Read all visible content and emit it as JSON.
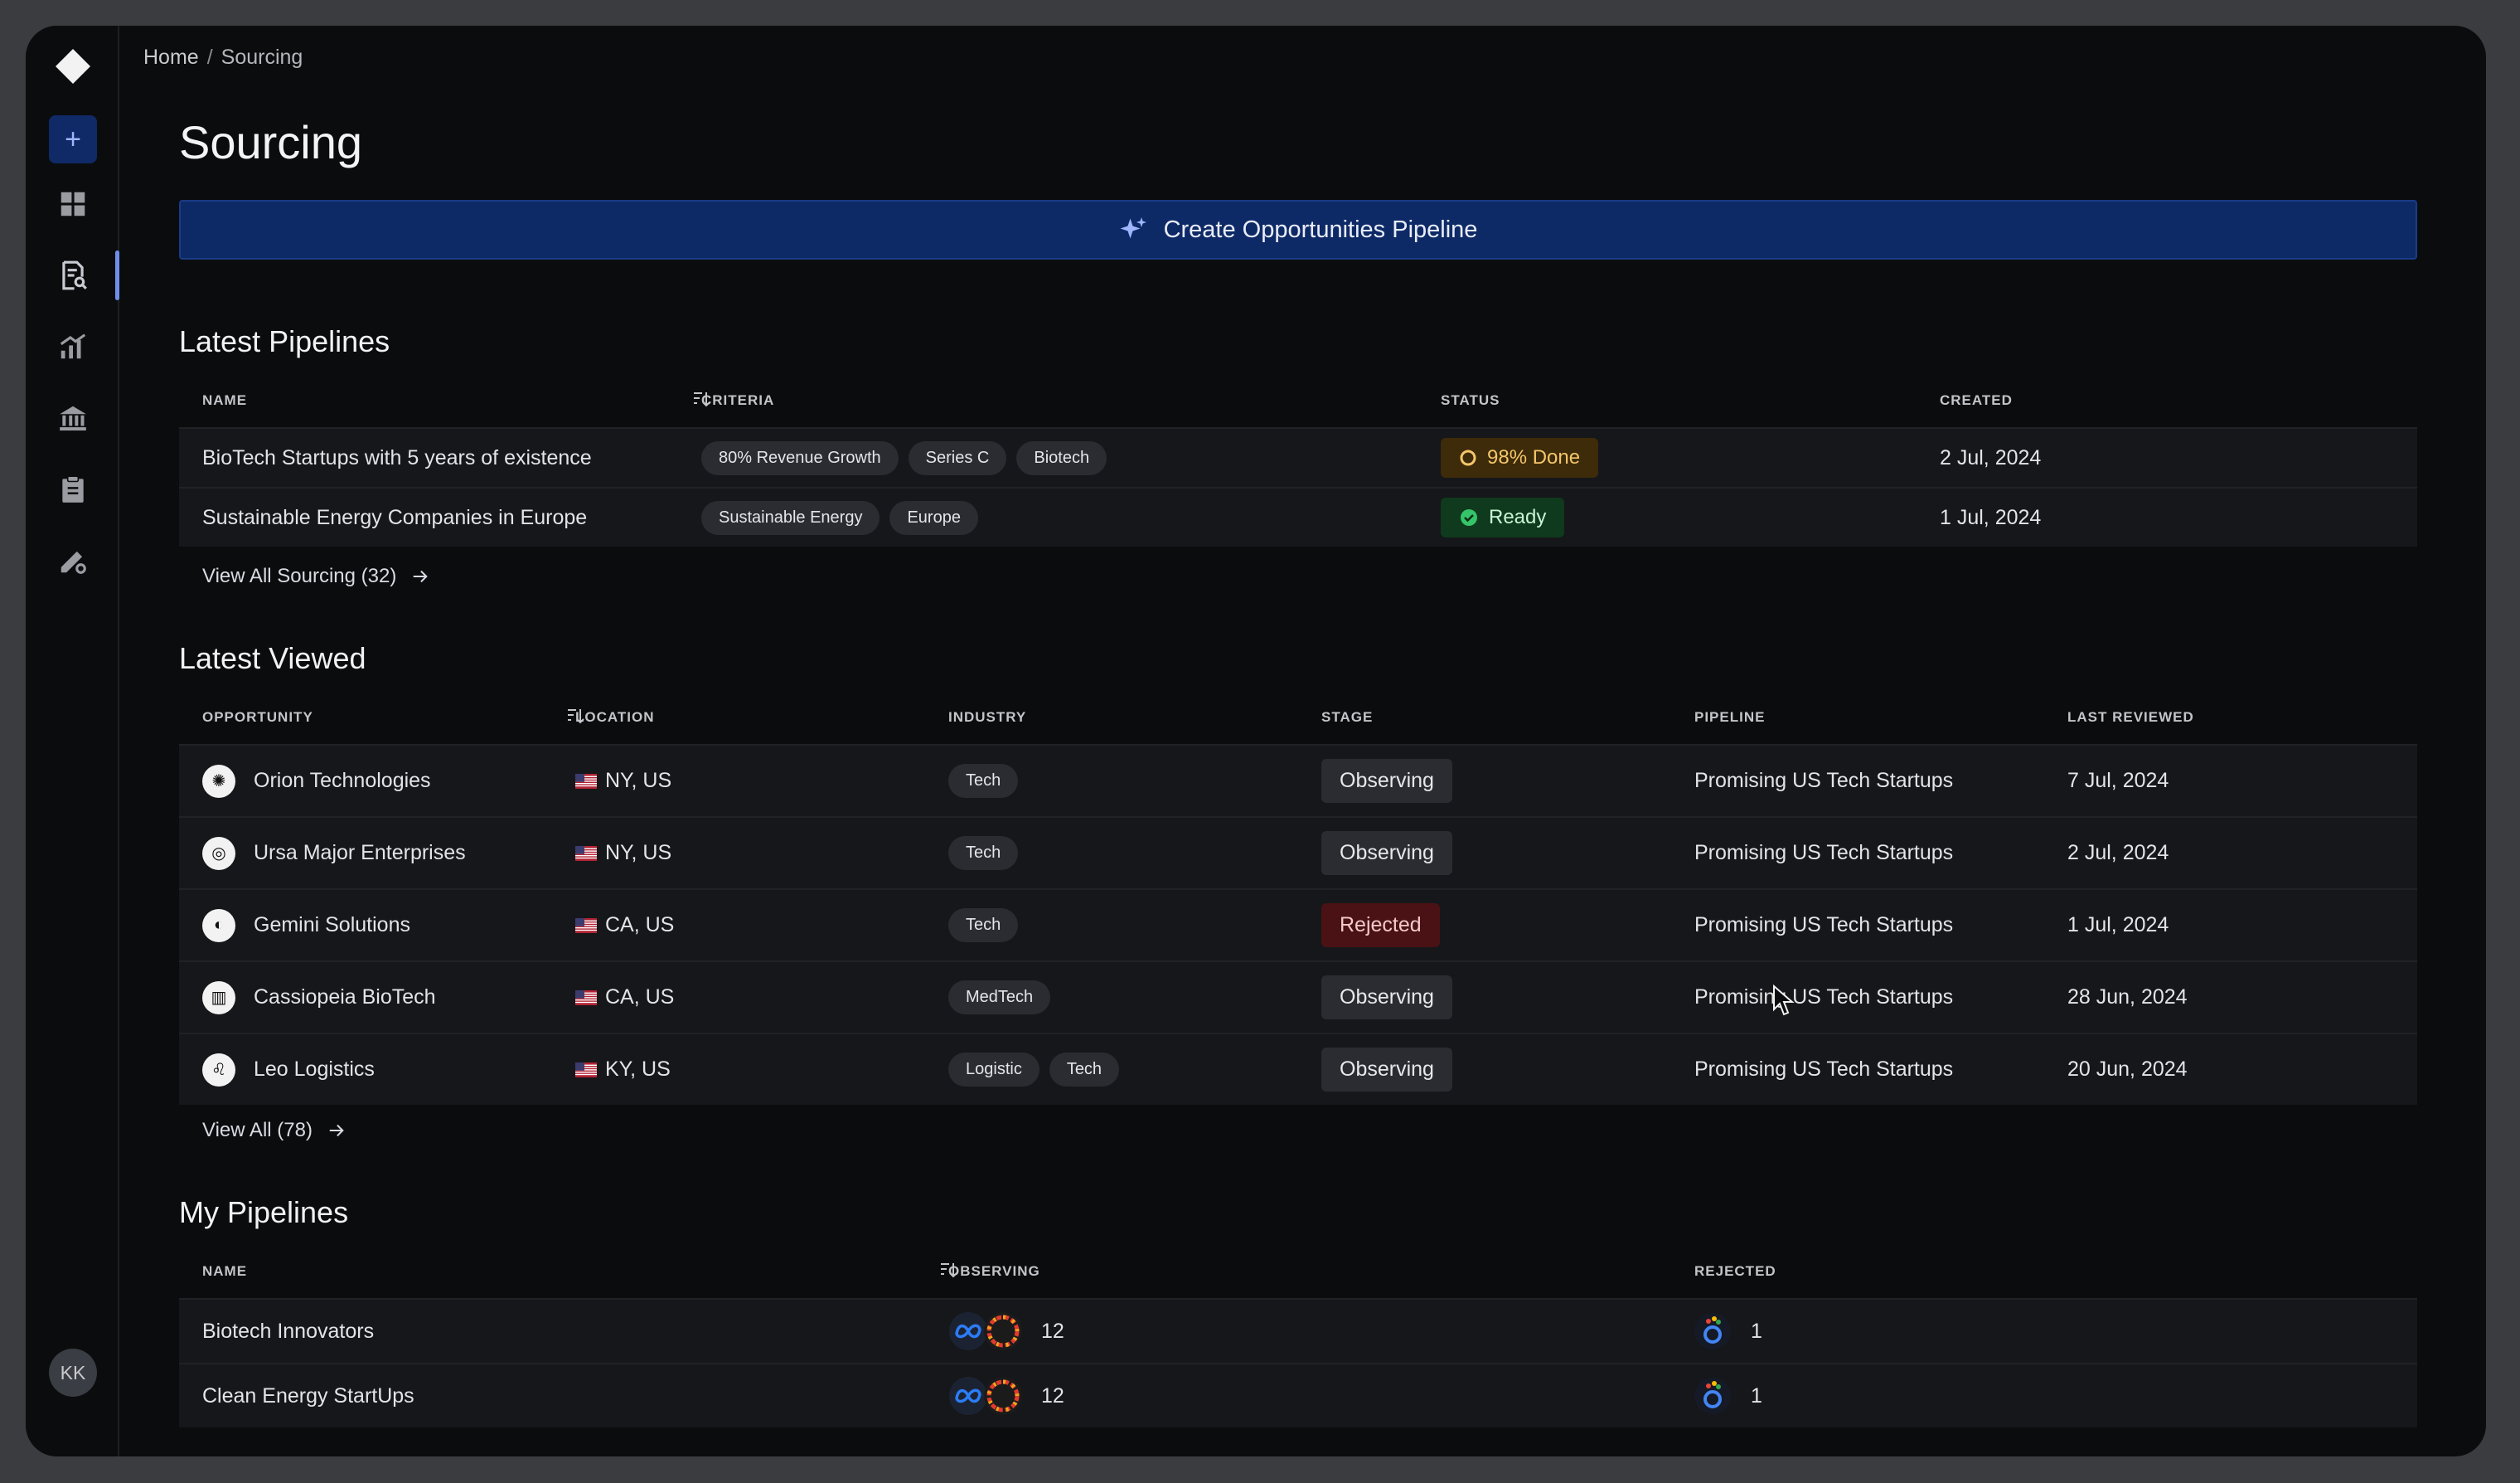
{
  "breadcrumb": {
    "home": "Home",
    "separator": "/",
    "current": "Sourcing"
  },
  "page_title": "Sourcing",
  "cta_label": "Create Opportunities Pipeline",
  "sidebar": {
    "icons": [
      "logo-icon",
      "plus-icon",
      "dashboard-icon",
      "document-search-icon",
      "chart-icon",
      "bank-icon",
      "clipboard-icon",
      "settings-pen-icon"
    ],
    "plus_label": "+",
    "avatar_initials": "KK",
    "active_color": "#6e8fe8"
  },
  "latest_pipelines": {
    "title": "Latest Pipelines",
    "columns": [
      "NAME",
      "CRITERIA",
      "STATUS",
      "CREATED"
    ],
    "rows": [
      {
        "name": "BioTech Startups with 5 years of existence",
        "criteria": [
          "80% Revenue Growth",
          "Series C",
          "Biotech"
        ],
        "status": "98% Done",
        "status_type": "progress",
        "created": "2 Jul, 2024"
      },
      {
        "name": "Sustainable Energy Companies in Europe",
        "criteria": [
          "Sustainable Energy",
          "Europe"
        ],
        "status": "Ready",
        "status_type": "ready",
        "created": "1 Jul, 2024"
      }
    ],
    "view_all": "View All Sourcing (32)"
  },
  "latest_viewed": {
    "title": "Latest Viewed",
    "columns": [
      "OPPORTUNITY",
      "LOCATION",
      "INDUSTRY",
      "STAGE",
      "PIPELINE",
      "LAST REVIEWED"
    ],
    "rows": [
      {
        "name": "Orion Technologies",
        "location": "NY, US",
        "industry": [
          "Tech"
        ],
        "stage": "Observing",
        "pipeline": "Promising US Tech Startups",
        "last_reviewed": "7 Jul, 2024"
      },
      {
        "name": "Ursa Major Enterprises",
        "location": "NY, US",
        "industry": [
          "Tech"
        ],
        "stage": "Observing",
        "pipeline": "Promising US Tech Startups",
        "last_reviewed": "2 Jul, 2024"
      },
      {
        "name": "Gemini Solutions",
        "location": "CA, US",
        "industry": [
          "Tech"
        ],
        "stage": "Rejected",
        "pipeline": "Promising US Tech Startups",
        "last_reviewed": "1 Jul, 2024"
      },
      {
        "name": "Cassiopeia BioTech",
        "location": "CA, US",
        "industry": [
          "MedTech"
        ],
        "stage": "Observing",
        "pipeline": "Promising US Tech Startups",
        "last_reviewed": "28 Jun, 2024"
      },
      {
        "name": "Leo Logistics",
        "location": "KY, US",
        "industry": [
          "Logistic",
          "Tech"
        ],
        "stage": "Observing",
        "pipeline": "Promising US Tech Startups",
        "last_reviewed": "20 Jun, 2024"
      }
    ],
    "view_all": "View All (78)"
  },
  "my_pipelines": {
    "title": "My Pipelines",
    "columns": [
      "NAME",
      "OBSERVING",
      "REJECTED"
    ],
    "rows": [
      {
        "name": "Biotech Innovators",
        "observing": "12",
        "rejected": "1"
      },
      {
        "name": "Clean Energy StartUps",
        "observing": "12",
        "rejected": "1"
      }
    ]
  }
}
